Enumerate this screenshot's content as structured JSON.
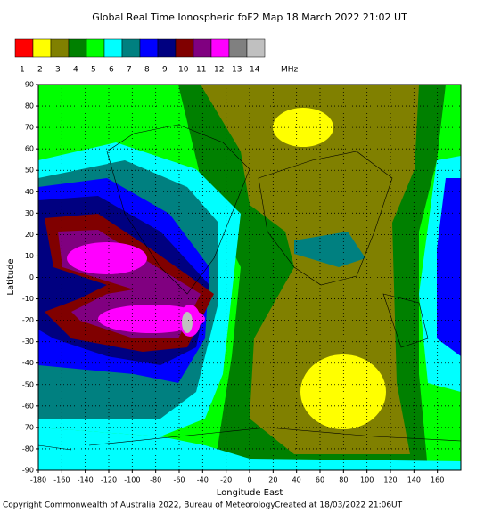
{
  "chart_data": {
    "type": "map",
    "title": "Global Real Time Ionospheric foF2 Map  18 March 2022 21:02 UT",
    "scale": {
      "labels": [
        "1",
        "2",
        "3",
        "4",
        "5",
        "6",
        "7",
        "8",
        "9",
        "10",
        "11",
        "12",
        "13",
        "14"
      ],
      "colors": [
        "#ff0000",
        "#ffff00",
        "#808000",
        "#008000",
        "#00ff00",
        "#00ffff",
        "#008080",
        "#0000ff",
        "#000080",
        "#800000",
        "#800080",
        "#ff00ff",
        "#808080",
        "#c0c0c0"
      ],
      "unit": "MHz"
    },
    "x_label": "Longitude East",
    "y_label": "Latitude",
    "xlim": [
      -180,
      180
    ],
    "ylim": [
      -90,
      90
    ],
    "xticks": [
      -180,
      -160,
      -140,
      -120,
      -100,
      -80,
      -60,
      -40,
      -20,
      0,
      20,
      40,
      60,
      80,
      100,
      120,
      140,
      160
    ],
    "yticks": [
      -90,
      -80,
      -70,
      -60,
      -50,
      -40,
      -30,
      -20,
      -10,
      0,
      10,
      20,
      30,
      40,
      50,
      60,
      70,
      80,
      90
    ],
    "grid": true,
    "copyright": "Copyright Commonwealth of Australia 2022, Bureau of Meteorology",
    "created": "Created at 18/03/2022 21:06UT"
  }
}
